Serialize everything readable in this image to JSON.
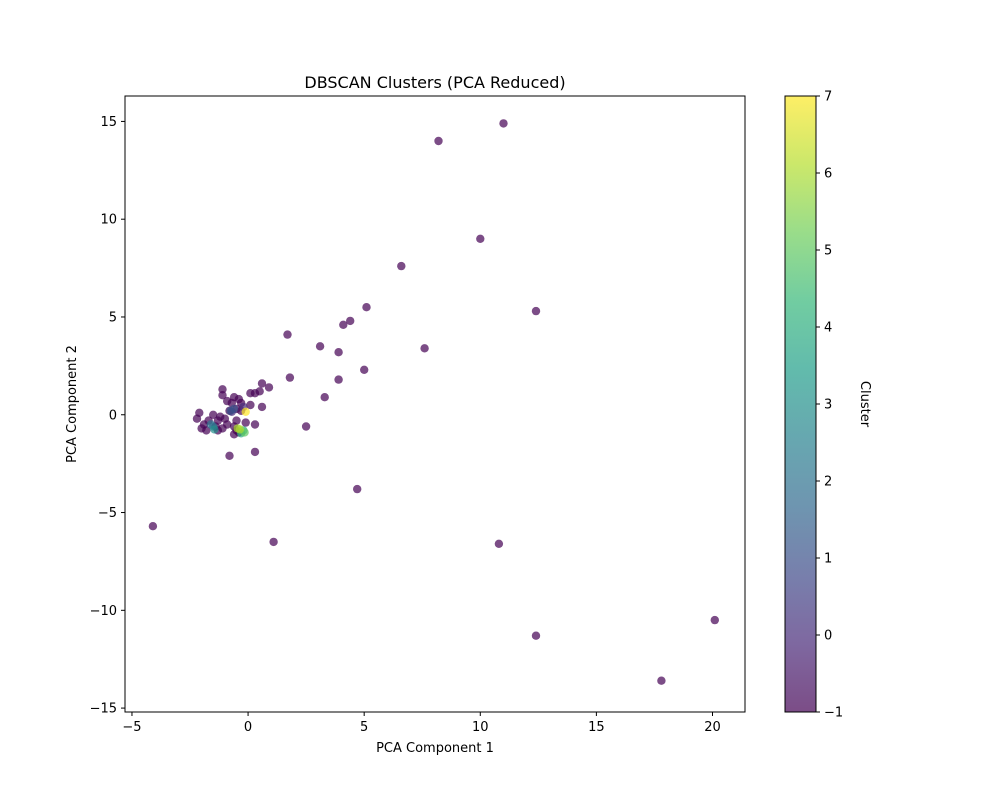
{
  "chart_data": {
    "type": "scatter",
    "title": "DBSCAN Clusters (PCA Reduced)",
    "xlabel": "PCA Component 1",
    "ylabel": "PCA Component 2",
    "xlim": [
      -5.3,
      21.4
    ],
    "ylim": [
      -15.2,
      16.3
    ],
    "xticks": [
      -5,
      0,
      5,
      10,
      15,
      20
    ],
    "yticks": [
      -15,
      -10,
      -5,
      0,
      5,
      10,
      15
    ],
    "grid": false,
    "colormap": "viridis",
    "marker_alpha": 0.7,
    "colorbar": {
      "label": "Cluster",
      "min": -1,
      "max": 7,
      "ticks": [
        -1,
        0,
        1,
        2,
        3,
        4,
        5,
        6,
        7
      ],
      "colors": [
        "#440154",
        "#482878",
        "#3e4989",
        "#31688e",
        "#26828e",
        "#1f9e89",
        "#35b779",
        "#6ece58",
        "#b5de2b",
        "#fde725"
      ]
    },
    "points": [
      {
        "x": 11.0,
        "y": 14.9,
        "cluster": -1
      },
      {
        "x": 8.2,
        "y": 14.0,
        "cluster": -1
      },
      {
        "x": 10.0,
        "y": 9.0,
        "cluster": -1
      },
      {
        "x": 6.6,
        "y": 7.6,
        "cluster": -1
      },
      {
        "x": 5.1,
        "y": 5.5,
        "cluster": -1
      },
      {
        "x": 12.4,
        "y": 5.3,
        "cluster": -1
      },
      {
        "x": 4.4,
        "y": 4.8,
        "cluster": -1
      },
      {
        "x": 4.1,
        "y": 4.6,
        "cluster": -1
      },
      {
        "x": 1.7,
        "y": 4.1,
        "cluster": -1
      },
      {
        "x": 3.1,
        "y": 3.5,
        "cluster": -1
      },
      {
        "x": 7.6,
        "y": 3.4,
        "cluster": -1
      },
      {
        "x": 3.9,
        "y": 3.2,
        "cluster": -1
      },
      {
        "x": 5.0,
        "y": 2.3,
        "cluster": -1
      },
      {
        "x": 1.8,
        "y": 1.9,
        "cluster": -1
      },
      {
        "x": 3.9,
        "y": 1.8,
        "cluster": -1
      },
      {
        "x": 0.6,
        "y": 1.6,
        "cluster": -1
      },
      {
        "x": 0.9,
        "y": 1.4,
        "cluster": -1
      },
      {
        "x": -1.1,
        "y": 1.3,
        "cluster": -1
      },
      {
        "x": 0.5,
        "y": 1.2,
        "cluster": -1
      },
      {
        "x": 0.3,
        "y": 1.1,
        "cluster": -1
      },
      {
        "x": 0.1,
        "y": 1.1,
        "cluster": -1
      },
      {
        "x": -1.1,
        "y": 1.0,
        "cluster": -1
      },
      {
        "x": 3.3,
        "y": 0.9,
        "cluster": -1
      },
      {
        "x": -0.6,
        "y": 0.9,
        "cluster": -1
      },
      {
        "x": -0.4,
        "y": 0.8,
        "cluster": -1
      },
      {
        "x": -0.9,
        "y": 0.7,
        "cluster": -1
      },
      {
        "x": -0.3,
        "y": 0.6,
        "cluster": -1
      },
      {
        "x": -0.7,
        "y": 0.6,
        "cluster": -1
      },
      {
        "x": 0.1,
        "y": 0.5,
        "cluster": -1
      },
      {
        "x": 0.6,
        "y": 0.4,
        "cluster": -1
      },
      {
        "x": -0.5,
        "y": 0.3,
        "cluster": -1
      },
      {
        "x": -0.8,
        "y": 0.2,
        "cluster": -1
      },
      {
        "x": -0.3,
        "y": 0.2,
        "cluster": -1
      },
      {
        "x": -2.1,
        "y": 0.1,
        "cluster": -1
      },
      {
        "x": -1.5,
        "y": 0.0,
        "cluster": -1
      },
      {
        "x": -1.2,
        "y": -0.1,
        "cluster": -1
      },
      {
        "x": -2.2,
        "y": -0.2,
        "cluster": -1
      },
      {
        "x": -1.0,
        "y": -0.2,
        "cluster": -1
      },
      {
        "x": -1.7,
        "y": -0.3,
        "cluster": -1
      },
      {
        "x": -1.3,
        "y": -0.3,
        "cluster": -1
      },
      {
        "x": -0.5,
        "y": -0.3,
        "cluster": -1
      },
      {
        "x": -0.1,
        "y": -0.4,
        "cluster": -1
      },
      {
        "x": -1.9,
        "y": -0.5,
        "cluster": -1
      },
      {
        "x": -0.9,
        "y": -0.5,
        "cluster": -1
      },
      {
        "x": 0.3,
        "y": -0.5,
        "cluster": -1
      },
      {
        "x": -1.4,
        "y": -0.6,
        "cluster": -1
      },
      {
        "x": -0.6,
        "y": -0.6,
        "cluster": -1
      },
      {
        "x": 2.5,
        "y": -0.6,
        "cluster": -1
      },
      {
        "x": -2.0,
        "y": -0.7,
        "cluster": -1
      },
      {
        "x": -1.1,
        "y": -0.7,
        "cluster": -1
      },
      {
        "x": -1.8,
        "y": -0.8,
        "cluster": -1
      },
      {
        "x": -1.3,
        "y": -0.8,
        "cluster": -1
      },
      {
        "x": -0.5,
        "y": -0.8,
        "cluster": -1
      },
      {
        "x": -0.4,
        "y": -0.9,
        "cluster": -1
      },
      {
        "x": -0.6,
        "y": -1.0,
        "cluster": -1
      },
      {
        "x": 0.3,
        "y": -1.9,
        "cluster": -1
      },
      {
        "x": -0.8,
        "y": -2.1,
        "cluster": -1
      },
      {
        "x": 4.7,
        "y": -3.8,
        "cluster": -1
      },
      {
        "x": -4.1,
        "y": -5.7,
        "cluster": -1
      },
      {
        "x": 1.1,
        "y": -6.5,
        "cluster": -1
      },
      {
        "x": 10.8,
        "y": -6.6,
        "cluster": -1
      },
      {
        "x": 20.1,
        "y": -10.5,
        "cluster": -1
      },
      {
        "x": 12.4,
        "y": -11.3,
        "cluster": -1
      },
      {
        "x": 17.8,
        "y": -13.6,
        "cluster": -1
      },
      {
        "x": -0.7,
        "y": 0.15,
        "cluster": 0
      },
      {
        "x": -0.2,
        "y": 0.4,
        "cluster": 0
      },
      {
        "x": -0.6,
        "y": 0.3,
        "cluster": 1
      },
      {
        "x": -0.75,
        "y": 0.2,
        "cluster": 1
      },
      {
        "x": -1.5,
        "y": -0.6,
        "cluster": 2
      },
      {
        "x": -1.6,
        "y": -0.5,
        "cluster": 2
      },
      {
        "x": -1.45,
        "y": -0.75,
        "cluster": 3
      },
      {
        "x": -0.2,
        "y": -0.8,
        "cluster": 4
      },
      {
        "x": -0.3,
        "y": -0.95,
        "cluster": 4
      },
      {
        "x": -0.15,
        "y": -0.9,
        "cluster": 5
      },
      {
        "x": -0.45,
        "y": -0.7,
        "cluster": 6
      },
      {
        "x": -0.35,
        "y": -0.75,
        "cluster": 6
      },
      {
        "x": -0.1,
        "y": 0.15,
        "cluster": 7
      }
    ]
  }
}
